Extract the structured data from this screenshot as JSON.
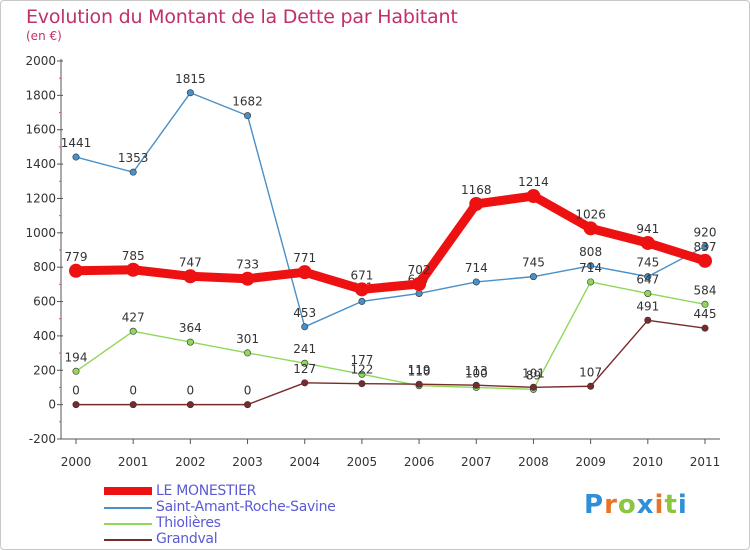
{
  "header": {
    "title": "Evolution du Montant de la Dette par Habitant",
    "subtitle": "(en €)"
  },
  "colors": {
    "title": "#c0306a",
    "axis": "#555555",
    "tick_label": "#333333",
    "value_label": "#333333",
    "legend_text": "#5a5ad6"
  },
  "logo": {
    "letters": [
      "P",
      "r",
      "o",
      "x",
      "i",
      "t",
      "i"
    ],
    "colors": [
      "#2f8fd8",
      "#e8742a",
      "#8cc63f",
      "#2f8fd8",
      "#e8742a",
      "#8cc63f",
      "#2f8fd8"
    ]
  },
  "chart_data": {
    "type": "line",
    "x": [
      "2000",
      "2001",
      "2002",
      "2003",
      "2004",
      "2005",
      "2006",
      "2007",
      "2008",
      "2009",
      "2010",
      "2011"
    ],
    "ylim": [
      -200,
      2000
    ],
    "yticks": [
      "-200",
      "0",
      "200",
      "400",
      "600",
      "800",
      "1000",
      "1200",
      "1400",
      "1600",
      "1800",
      "2000"
    ],
    "grid": false,
    "legend_position": "bottom-left",
    "series": [
      {
        "name": "Saint-Amant-Roche-Savine",
        "color": "#4a90c8",
        "values": [
          1441,
          1353,
          1815,
          1682,
          453,
          601,
          647,
          714,
          745,
          808,
          745,
          920
        ]
      },
      {
        "name": "Thiolières",
        "color": "#8fd85a",
        "values": [
          194,
          427,
          364,
          301,
          241,
          177,
          110,
          100,
          89,
          714,
          647,
          584
        ]
      },
      {
        "name": "Grandval",
        "color": "#7a2a2a",
        "values": [
          0,
          0,
          0,
          0,
          127,
          122,
          119,
          113,
          101,
          107,
          491,
          445
        ]
      },
      {
        "name": "LE MONESTIER",
        "color": "#ee1111",
        "values": [
          779,
          785,
          747,
          733,
          771,
          671,
          702,
          1168,
          1214,
          1026,
          941,
          837
        ]
      }
    ]
  },
  "legend": [
    {
      "label": "LE MONESTIER",
      "color": "#ee1111"
    },
    {
      "label": "Saint-Amant-Roche-Savine",
      "color": "#4a90c8"
    },
    {
      "label": "Thiolières",
      "color": "#8fd85a"
    },
    {
      "label": "Grandval",
      "color": "#7a2a2a"
    }
  ]
}
